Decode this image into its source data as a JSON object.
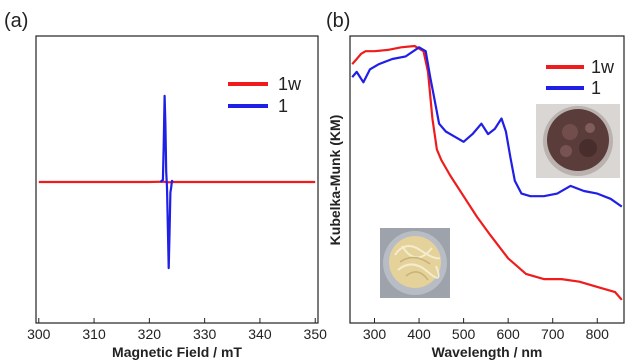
{
  "chart_data": [
    {
      "panel_label": "(a)",
      "type": "line",
      "xlabel": "Magnetic Field / mT",
      "ylabel": "",
      "xlim": [
        299.5,
        350.5
      ],
      "ylim": [
        -1.0,
        1.0
      ],
      "xticks": [
        300,
        310,
        320,
        330,
        340,
        350
      ],
      "legend_position": "top-right",
      "series": [
        {
          "name": "1w",
          "color": "#ee1c1c",
          "x": [
            300,
            310,
            320,
            322.5,
            323.5,
            324.5,
            330,
            340,
            350
          ],
          "y": [
            0,
            0,
            0,
            0.003,
            -0.003,
            0,
            0,
            0,
            0
          ]
        },
        {
          "name": "1",
          "color": "#1f1fe6",
          "x": [
            322.0,
            322.45,
            322.6,
            322.75,
            322.9,
            323.05,
            323.2,
            323.35,
            323.5,
            323.65,
            323.8,
            323.95,
            324.1,
            324.3
          ],
          "y": [
            0,
            0.02,
            0.35,
            0.82,
            0.55,
            0.1,
            -0.05,
            -0.45,
            -0.82,
            -0.5,
            -0.1,
            -0.05,
            0.01,
            0
          ]
        }
      ]
    },
    {
      "panel_label": "(b)",
      "type": "line",
      "xlabel": "Wavelength / nm",
      "ylabel": "Kubelka-Munk (KM)",
      "xlim": [
        245,
        860
      ],
      "ylim": [
        0,
        1.0
      ],
      "xticks": [
        300,
        400,
        500,
        600,
        700,
        800
      ],
      "legend_position": "top-right",
      "series": [
        {
          "name": "1w",
          "color": "#ee1c1c",
          "x": [
            250,
            260,
            270,
            280,
            300,
            330,
            360,
            390,
            410,
            420,
            430,
            440,
            450,
            470,
            500,
            530,
            560,
            600,
            640,
            680,
            720,
            760,
            800,
            840,
            855
          ],
          "y": [
            0.93,
            0.95,
            0.97,
            0.98,
            0.98,
            0.985,
            0.995,
            1.0,
            0.98,
            0.9,
            0.72,
            0.6,
            0.56,
            0.5,
            0.42,
            0.34,
            0.27,
            0.18,
            0.12,
            0.1,
            0.1,
            0.09,
            0.07,
            0.05,
            0.02
          ]
        },
        {
          "name": "1",
          "color": "#1f1fe6",
          "x": [
            250,
            260,
            275,
            290,
            310,
            340,
            370,
            400,
            415,
            425,
            435,
            445,
            460,
            480,
            500,
            520,
            540,
            555,
            570,
            585,
            595,
            605,
            615,
            630,
            650,
            680,
            710,
            740,
            770,
            800,
            830,
            855
          ],
          "y": [
            0.88,
            0.9,
            0.86,
            0.91,
            0.93,
            0.95,
            0.96,
            0.995,
            0.98,
            0.88,
            0.79,
            0.7,
            0.67,
            0.65,
            0.63,
            0.66,
            0.7,
            0.66,
            0.68,
            0.72,
            0.67,
            0.57,
            0.48,
            0.43,
            0.42,
            0.42,
            0.43,
            0.46,
            0.44,
            0.43,
            0.41,
            0.38
          ]
        }
      ],
      "photo_insets": [
        "brown-crystal-powder-photo",
        "yellow-fibrous-powder-photo"
      ]
    }
  ]
}
